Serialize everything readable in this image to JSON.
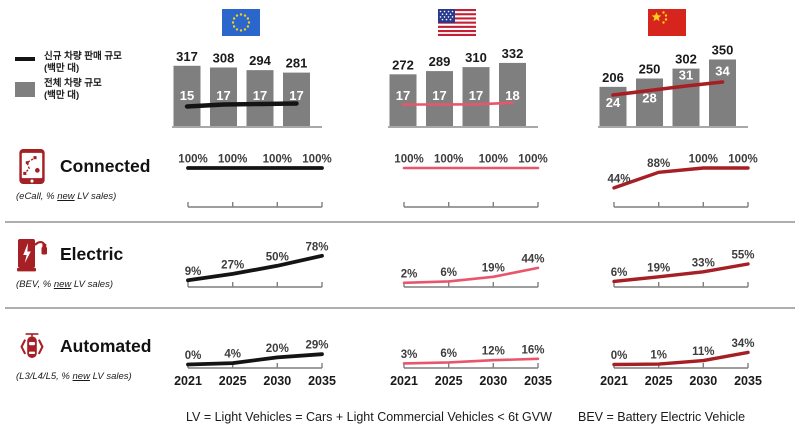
{
  "colors": {
    "bar_gray": "#7f7f7f",
    "eu_line": "#141414",
    "usa_line": "#e8566c",
    "china_line": "#a51f25",
    "icon_red": "#a51f25",
    "axis_gray": "#7f7f7f",
    "divider_gray": "#aeaeae",
    "label_dark": "#3d3d3d"
  },
  "legend": {
    "line_label": "신규 차량 판매 규모",
    "line_unit": "(백만 대)",
    "bar_label": "전체 차량 규모",
    "bar_unit": "(백만 대)"
  },
  "footnotes": {
    "lv": "LV = Light Vehicles = Cars + Light Commercial Vehicles < 6t GVW",
    "bev": "BEV = Battery Electric Vehicle"
  },
  "chart_data": {
    "type": "multi-panel (bar+line fleet charts, line percent charts)",
    "years": [
      "2021",
      "2025",
      "2030",
      "2035"
    ],
    "columns": [
      {
        "name": "EU",
        "flag_icon": "eu-flag"
      },
      {
        "name": "USA",
        "flag_icon": "usa-flag"
      },
      {
        "name": "China",
        "flag_icon": "china-flag"
      }
    ],
    "fleet_charts": {
      "bar_series_name": "전체 차량 규모 (백만 대)",
      "line_series_name": "신규 차량 판매 규모 (백만 대)",
      "EU": {
        "bars": [
          317,
          308,
          294,
          281
        ],
        "line": [
          15,
          17,
          17,
          17
        ]
      },
      "USA": {
        "bars": [
          272,
          289,
          310,
          332
        ],
        "line": [
          17,
          17,
          17,
          18
        ]
      },
      "China": {
        "bars": [
          206,
          250,
          302,
          350
        ],
        "line": [
          24,
          28,
          31,
          34
        ]
      }
    },
    "metric_rows": [
      {
        "label": "Connected",
        "sublabel_prefix": "(eCall, % ",
        "sublabel_underlined": "new",
        "sublabel_suffix": " LV sales)",
        "icon": "connected-phone-icon",
        "unit": "%",
        "EU": [
          100,
          100,
          100,
          100
        ],
        "USA": [
          100,
          100,
          100,
          100
        ],
        "China": [
          44,
          88,
          100,
          100
        ]
      },
      {
        "label": "Electric",
        "sublabel_prefix": "(BEV, % ",
        "sublabel_underlined": "new",
        "sublabel_suffix": " LV sales)",
        "icon": "ev-charger-icon",
        "unit": "%",
        "EU": [
          9,
          27,
          50,
          78
        ],
        "USA": [
          2,
          6,
          19,
          44
        ],
        "China": [
          6,
          19,
          33,
          55
        ]
      },
      {
        "label": "Automated",
        "sublabel_prefix": "(L3/L4/L5, % ",
        "sublabel_underlined": "new",
        "sublabel_suffix": " LV sales)",
        "icon": "automated-car-icon",
        "unit": "%",
        "EU": [
          0,
          4,
          20,
          29
        ],
        "USA": [
          3,
          6,
          12,
          16
        ],
        "China": [
          0,
          1,
          11,
          34
        ]
      }
    ]
  }
}
